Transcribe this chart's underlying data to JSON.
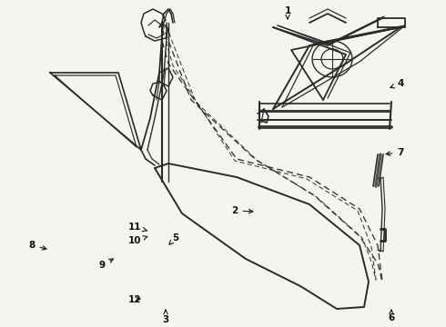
{
  "bg_color": "#f5f5f0",
  "line_color": "#2a2a2a",
  "label_color": "#111111",
  "figsize": [
    4.9,
    3.6
  ],
  "dpi": 100
}
